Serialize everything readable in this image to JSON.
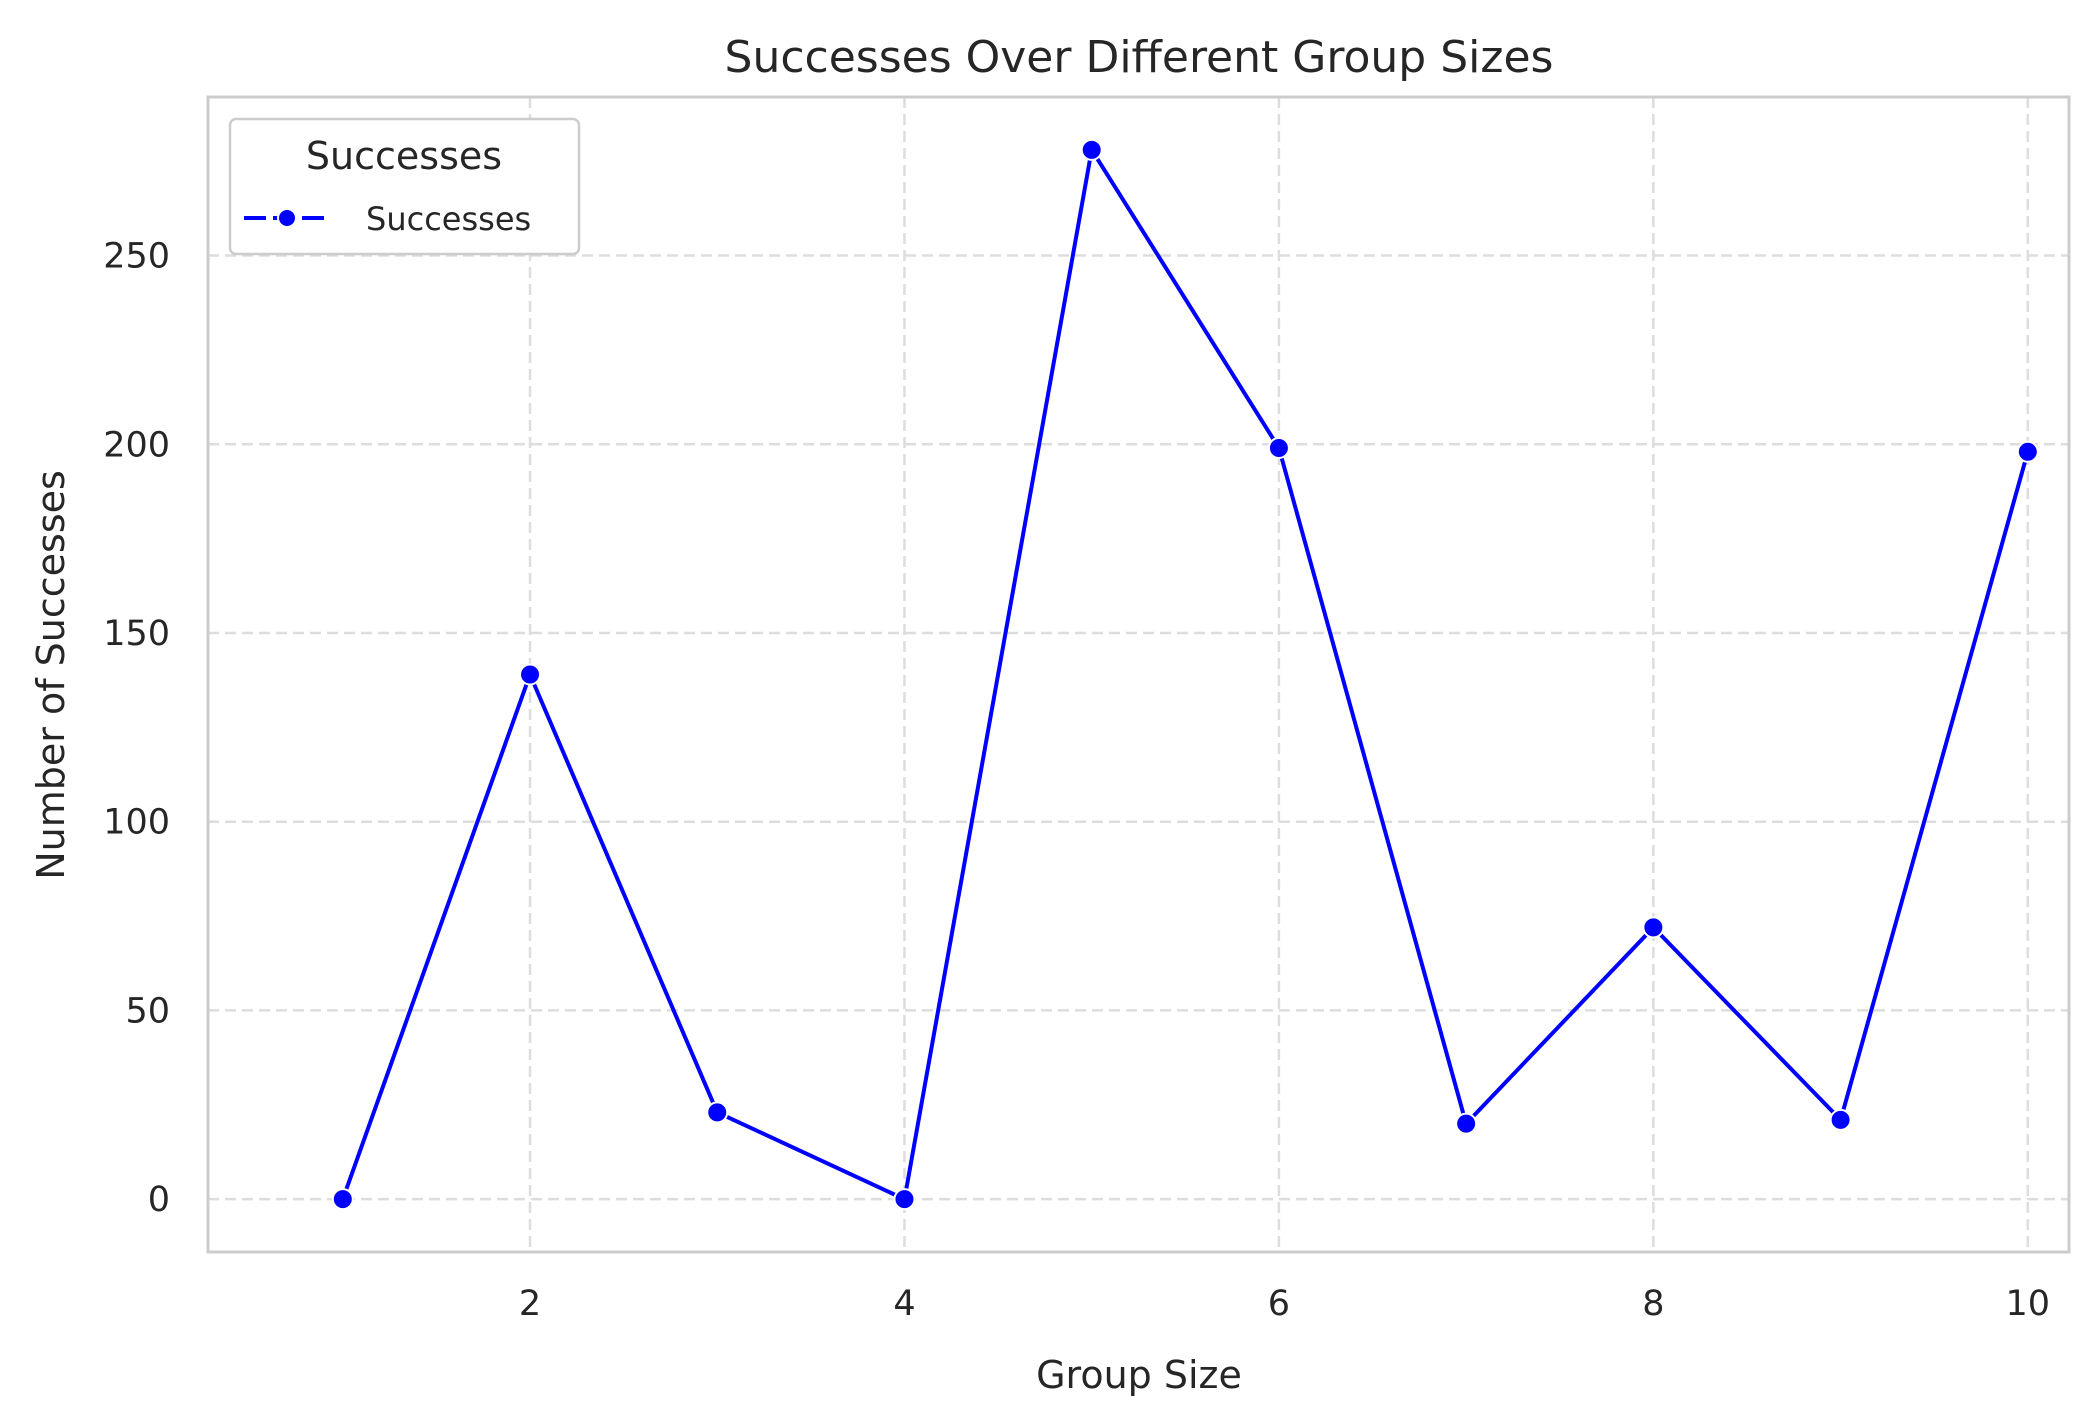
{
  "chart_data": {
    "type": "line",
    "title": "Successes Over Different Group Sizes",
    "xlabel": "Group Size",
    "ylabel": "Number of Successes",
    "x": [
      1,
      2,
      3,
      4,
      5,
      6,
      7,
      8,
      9,
      10
    ],
    "series": [
      {
        "name": "Successes",
        "values": [
          0,
          139,
          23,
          0,
          278,
          199,
          20,
          72,
          21,
          198
        ],
        "color": "#0000ff",
        "marker": "circle"
      }
    ],
    "xlim": [
      0.28,
      10.22
    ],
    "ylim": [
      -14,
      292
    ],
    "xticks": [
      2,
      4,
      6,
      8,
      10
    ],
    "yticks": [
      0,
      50,
      100,
      150,
      200,
      250
    ],
    "grid": true,
    "grid_style": "dashed",
    "legend": {
      "title": "Successes",
      "placement": "top-left"
    }
  }
}
